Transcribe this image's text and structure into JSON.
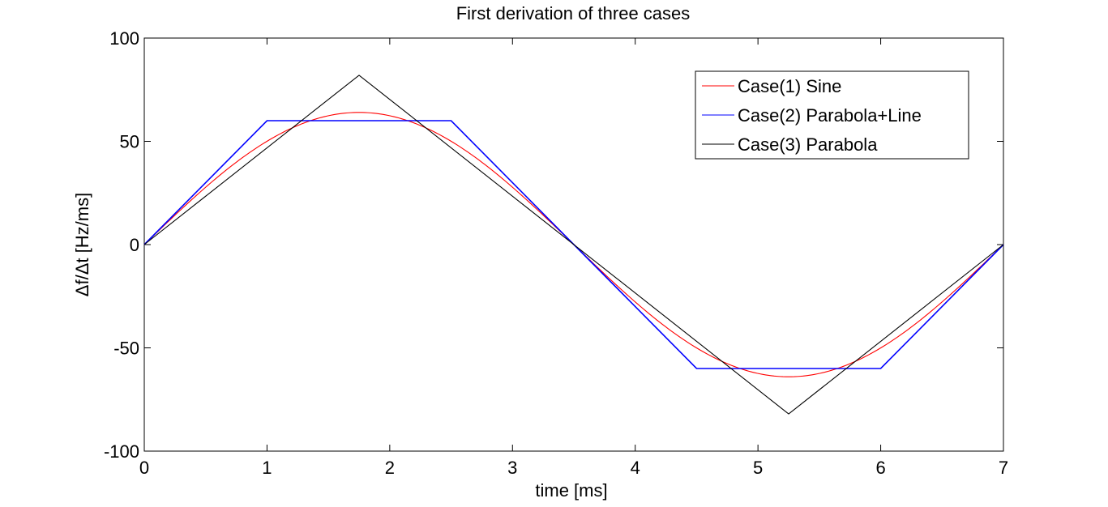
{
  "chart_data": {
    "type": "line",
    "title": "First derivation of three cases",
    "xlabel": "time [ms]",
    "ylabel": "Δf/Δt [Hz/ms]",
    "xlim": [
      0,
      7
    ],
    "ylim": [
      -100,
      100
    ],
    "xticks": [
      0,
      1,
      2,
      3,
      4,
      5,
      6,
      7
    ],
    "yticks": [
      100,
      50,
      0,
      -50,
      -100
    ],
    "grid": false,
    "legend_position": "top-right",
    "series": [
      {
        "name": "Case(1) Sine",
        "color": "#ff0000",
        "kind": "sine",
        "amplitude": 64,
        "period": 7
      },
      {
        "name": "Case(2) Parabola+Line",
        "color": "#0000ff",
        "x": [
          0,
          1,
          2.5,
          4.5,
          6,
          7
        ],
        "y": [
          0,
          60,
          60,
          -60,
          -60,
          0
        ]
      },
      {
        "name": "Case(3) Parabola",
        "color": "#000000",
        "x": [
          0,
          1.75,
          5.25,
          7
        ],
        "y": [
          0,
          82,
          -82,
          0
        ]
      }
    ]
  }
}
